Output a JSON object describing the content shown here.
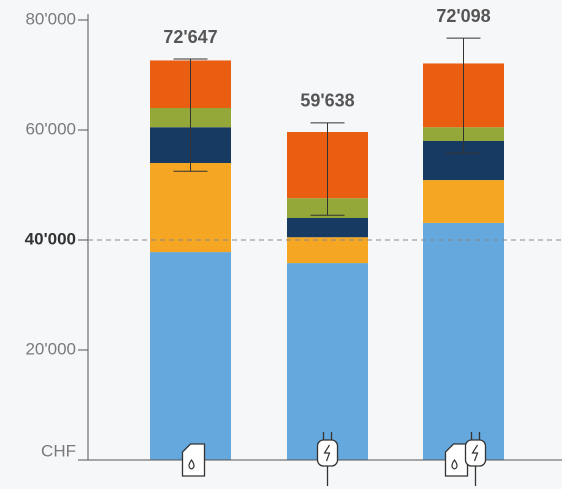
{
  "chart_data": {
    "type": "stacked_bar",
    "categories": [
      null,
      null,
      null
    ],
    "series": [
      {
        "color": "#65a8dd",
        "values": [
          37800,
          35800,
          43100
        ]
      },
      {
        "color": "#f5a623",
        "values": [
          16200,
          4700,
          7800
        ]
      },
      {
        "color": "#173a62",
        "values": [
          6500,
          3500,
          7100
        ]
      },
      {
        "color": "#94a83a",
        "values": [
          3500,
          3600,
          2500
        ]
      },
      {
        "color": "#e95e10",
        "values": [
          8647,
          12038,
          11598
        ]
      }
    ],
    "totals": {
      "values": [
        72647,
        59638,
        72098
      ],
      "value_labels": [
        "72'647",
        "59'638",
        "72'098"
      ]
    },
    "error_bars": {
      "low": [
        52500,
        44500,
        55800
      ],
      "high": [
        72900,
        61300,
        76700
      ]
    },
    "reference_line": 40000,
    "ylim": [
      0,
      80000
    ],
    "yticks": [
      {
        "value": 0,
        "label": "CHF"
      },
      {
        "value": 20000,
        "label": "20'000"
      },
      {
        "value": 40000,
        "label": "40'000"
      },
      {
        "value": 60000,
        "label": "60'000"
      },
      {
        "value": 80000,
        "label": "80'000"
      }
    ]
  }
}
